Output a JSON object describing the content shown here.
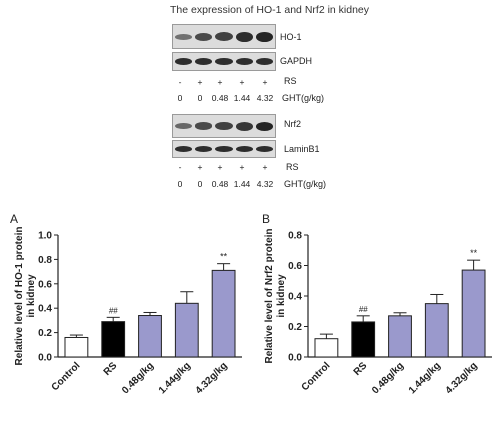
{
  "figure_title": "The expression of HO-1 and Nrf2 in kidney",
  "blots": [
    {
      "protein": "HO-1",
      "control": "GAPDH",
      "rs_row": [
        "-",
        "+",
        "+",
        "+",
        "+"
      ],
      "rs_label": "RS",
      "ght_row": [
        "0",
        "0",
        "0.48",
        "1.44",
        "4.32"
      ],
      "ght_label": "GHT(g/kg)"
    },
    {
      "protein": "Nrf2",
      "control": "LaminB1",
      "rs_row": [
        "-",
        "+",
        "+",
        "+",
        "+"
      ],
      "rs_label": "RS",
      "ght_row": [
        "0",
        "0",
        "0.48",
        "1.44",
        "4.32"
      ],
      "ght_label": "GHT(g/kg)"
    }
  ],
  "colors": {
    "control": "#ffffff",
    "rs": "#000000",
    "treatment": "#9a99cc",
    "axis": "#222222"
  },
  "chart_data": [
    {
      "panel": "A",
      "type": "bar",
      "categories": [
        "Control",
        "RS",
        "0.48g/kg",
        "1.44g/kg",
        "4.32g/kg"
      ],
      "values": [
        0.16,
        0.29,
        0.34,
        0.44,
        0.71
      ],
      "errors": [
        0.02,
        0.035,
        0.025,
        0.095,
        0.055
      ],
      "annotations": [
        "",
        "##",
        "",
        "",
        "**"
      ],
      "ylabel": "Relative level of HO-1 protein\nin kidney",
      "ylim": [
        0,
        1.0
      ],
      "yticks": [
        "0.0",
        "0.2",
        "0.4",
        "0.6",
        "0.8",
        "1.0"
      ]
    },
    {
      "panel": "B",
      "type": "bar",
      "categories": [
        "Control",
        "RS",
        "0.48g/kg",
        "1.44g/kg",
        "4.32g/kg"
      ],
      "values": [
        0.12,
        0.23,
        0.27,
        0.35,
        0.57
      ],
      "errors": [
        0.03,
        0.04,
        0.02,
        0.06,
        0.065
      ],
      "annotations": [
        "",
        "##",
        "",
        "",
        "**"
      ],
      "ylabel": "Relative level of Nrf2 protein\nin kidney",
      "ylim": [
        0,
        0.8
      ],
      "yticks": [
        "0.0",
        "0.2",
        "0.4",
        "0.6",
        "0.8"
      ]
    }
  ]
}
